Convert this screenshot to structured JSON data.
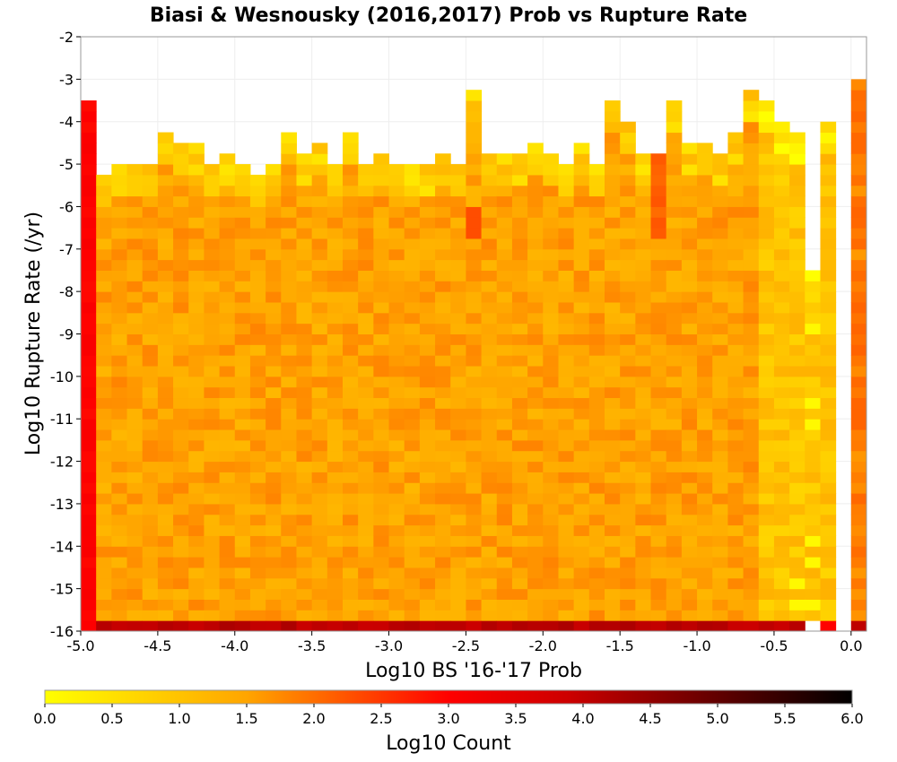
{
  "chart_data": {
    "type": "heatmap",
    "title": "Biasi & Wesnousky (2016,2017) Prob vs Rupture Rate",
    "xlabel": "Log10 BS '16-'17 Prob",
    "ylabel": "Log10 Rupture Rate (/yr)",
    "xlim": [
      -5.0,
      0.1
    ],
    "ylim": [
      -16,
      -2
    ],
    "x_bin_width": 0.1,
    "y_bin_width": 0.25,
    "x_ticks": [
      "-5.0",
      "-4.5",
      "-4.0",
      "-3.5",
      "-3.0",
      "-2.5",
      "-2.0",
      "-1.5",
      "-1.0",
      "-0.5",
      "0.0"
    ],
    "y_ticks": [
      "-2",
      "-3",
      "-4",
      "-5",
      "-6",
      "-7",
      "-8",
      "-9",
      "-10",
      "-11",
      "-12",
      "-13",
      "-14",
      "-15",
      "-16"
    ],
    "grid": true,
    "colorbar": {
      "label": "Log10 Count",
      "min": 0.0,
      "max": 6.0,
      "ticks": [
        "0.0",
        "0.5",
        "1.0",
        "1.5",
        "2.0",
        "2.5",
        "3.0",
        "3.5",
        "4.0",
        "4.5",
        "5.0",
        "5.5",
        "6.0"
      ],
      "colors": [
        "#ffff00",
        "#ffa500",
        "#ff0000",
        "#000000"
      ]
    },
    "description_values": {
      "first_column_x": -5.0,
      "first_column_typical_log10_count": 3.0,
      "bulk_typical_log10_count": 1.5,
      "bottom_row_y": -16,
      "bottom_row_log10_count": 4.0,
      "column_tops": [
        {
          "x": -5.0,
          "top": -3.5
        },
        {
          "x": -4.9,
          "top": -5.25
        },
        {
          "x": -4.8,
          "top": -5.0
        },
        {
          "x": -4.7,
          "top": -5.0
        },
        {
          "x": -4.6,
          "top": -5.0
        },
        {
          "x": -4.5,
          "top": -4.25
        },
        {
          "x": -4.4,
          "top": -4.5
        },
        {
          "x": -4.3,
          "top": -4.5
        },
        {
          "x": -4.2,
          "top": -5.0
        },
        {
          "x": -4.1,
          "top": -4.75
        },
        {
          "x": -4.0,
          "top": -5.0
        },
        {
          "x": -3.9,
          "top": -5.25
        },
        {
          "x": -3.8,
          "top": -5.0
        },
        {
          "x": -3.7,
          "top": -4.25
        },
        {
          "x": -3.6,
          "top": -4.75
        },
        {
          "x": -3.5,
          "top": -4.5
        },
        {
          "x": -3.4,
          "top": -5.0
        },
        {
          "x": -3.3,
          "top": -4.25
        },
        {
          "x": -3.2,
          "top": -5.0
        },
        {
          "x": -3.1,
          "top": -4.75
        },
        {
          "x": -3.0,
          "top": -5.0
        },
        {
          "x": -2.9,
          "top": -5.0
        },
        {
          "x": -2.8,
          "top": -5.0
        },
        {
          "x": -2.7,
          "top": -4.75
        },
        {
          "x": -2.6,
          "top": -5.0
        },
        {
          "x": -2.5,
          "top": -3.25
        },
        {
          "x": -2.4,
          "top": -4.75
        },
        {
          "x": -2.3,
          "top": -4.75
        },
        {
          "x": -2.2,
          "top": -4.75
        },
        {
          "x": -2.1,
          "top": -4.5
        },
        {
          "x": -2.0,
          "top": -4.75
        },
        {
          "x": -1.9,
          "top": -5.0
        },
        {
          "x": -1.8,
          "top": -4.5
        },
        {
          "x": -1.7,
          "top": -5.0
        },
        {
          "x": -1.6,
          "top": -3.5
        },
        {
          "x": -1.5,
          "top": -4.0
        },
        {
          "x": -1.4,
          "top": -4.75
        },
        {
          "x": -1.3,
          "top": -4.75
        },
        {
          "x": -1.2,
          "top": -3.5
        },
        {
          "x": -1.1,
          "top": -4.5
        },
        {
          "x": -1.0,
          "top": -4.5
        },
        {
          "x": -0.9,
          "top": -4.75
        },
        {
          "x": -0.8,
          "top": -4.25
        },
        {
          "x": -0.7,
          "top": -3.25
        },
        {
          "x": -0.6,
          "top": -3.5
        },
        {
          "x": -0.5,
          "top": -4.0
        },
        {
          "x": -0.4,
          "top": -4.25
        },
        {
          "x": -0.3,
          "top": -7.5
        },
        {
          "x": -0.2,
          "top": -4.0
        },
        {
          "x": -0.1,
          "top": -16.0
        },
        {
          "x": 0.0,
          "top": -3.0
        }
      ]
    }
  }
}
